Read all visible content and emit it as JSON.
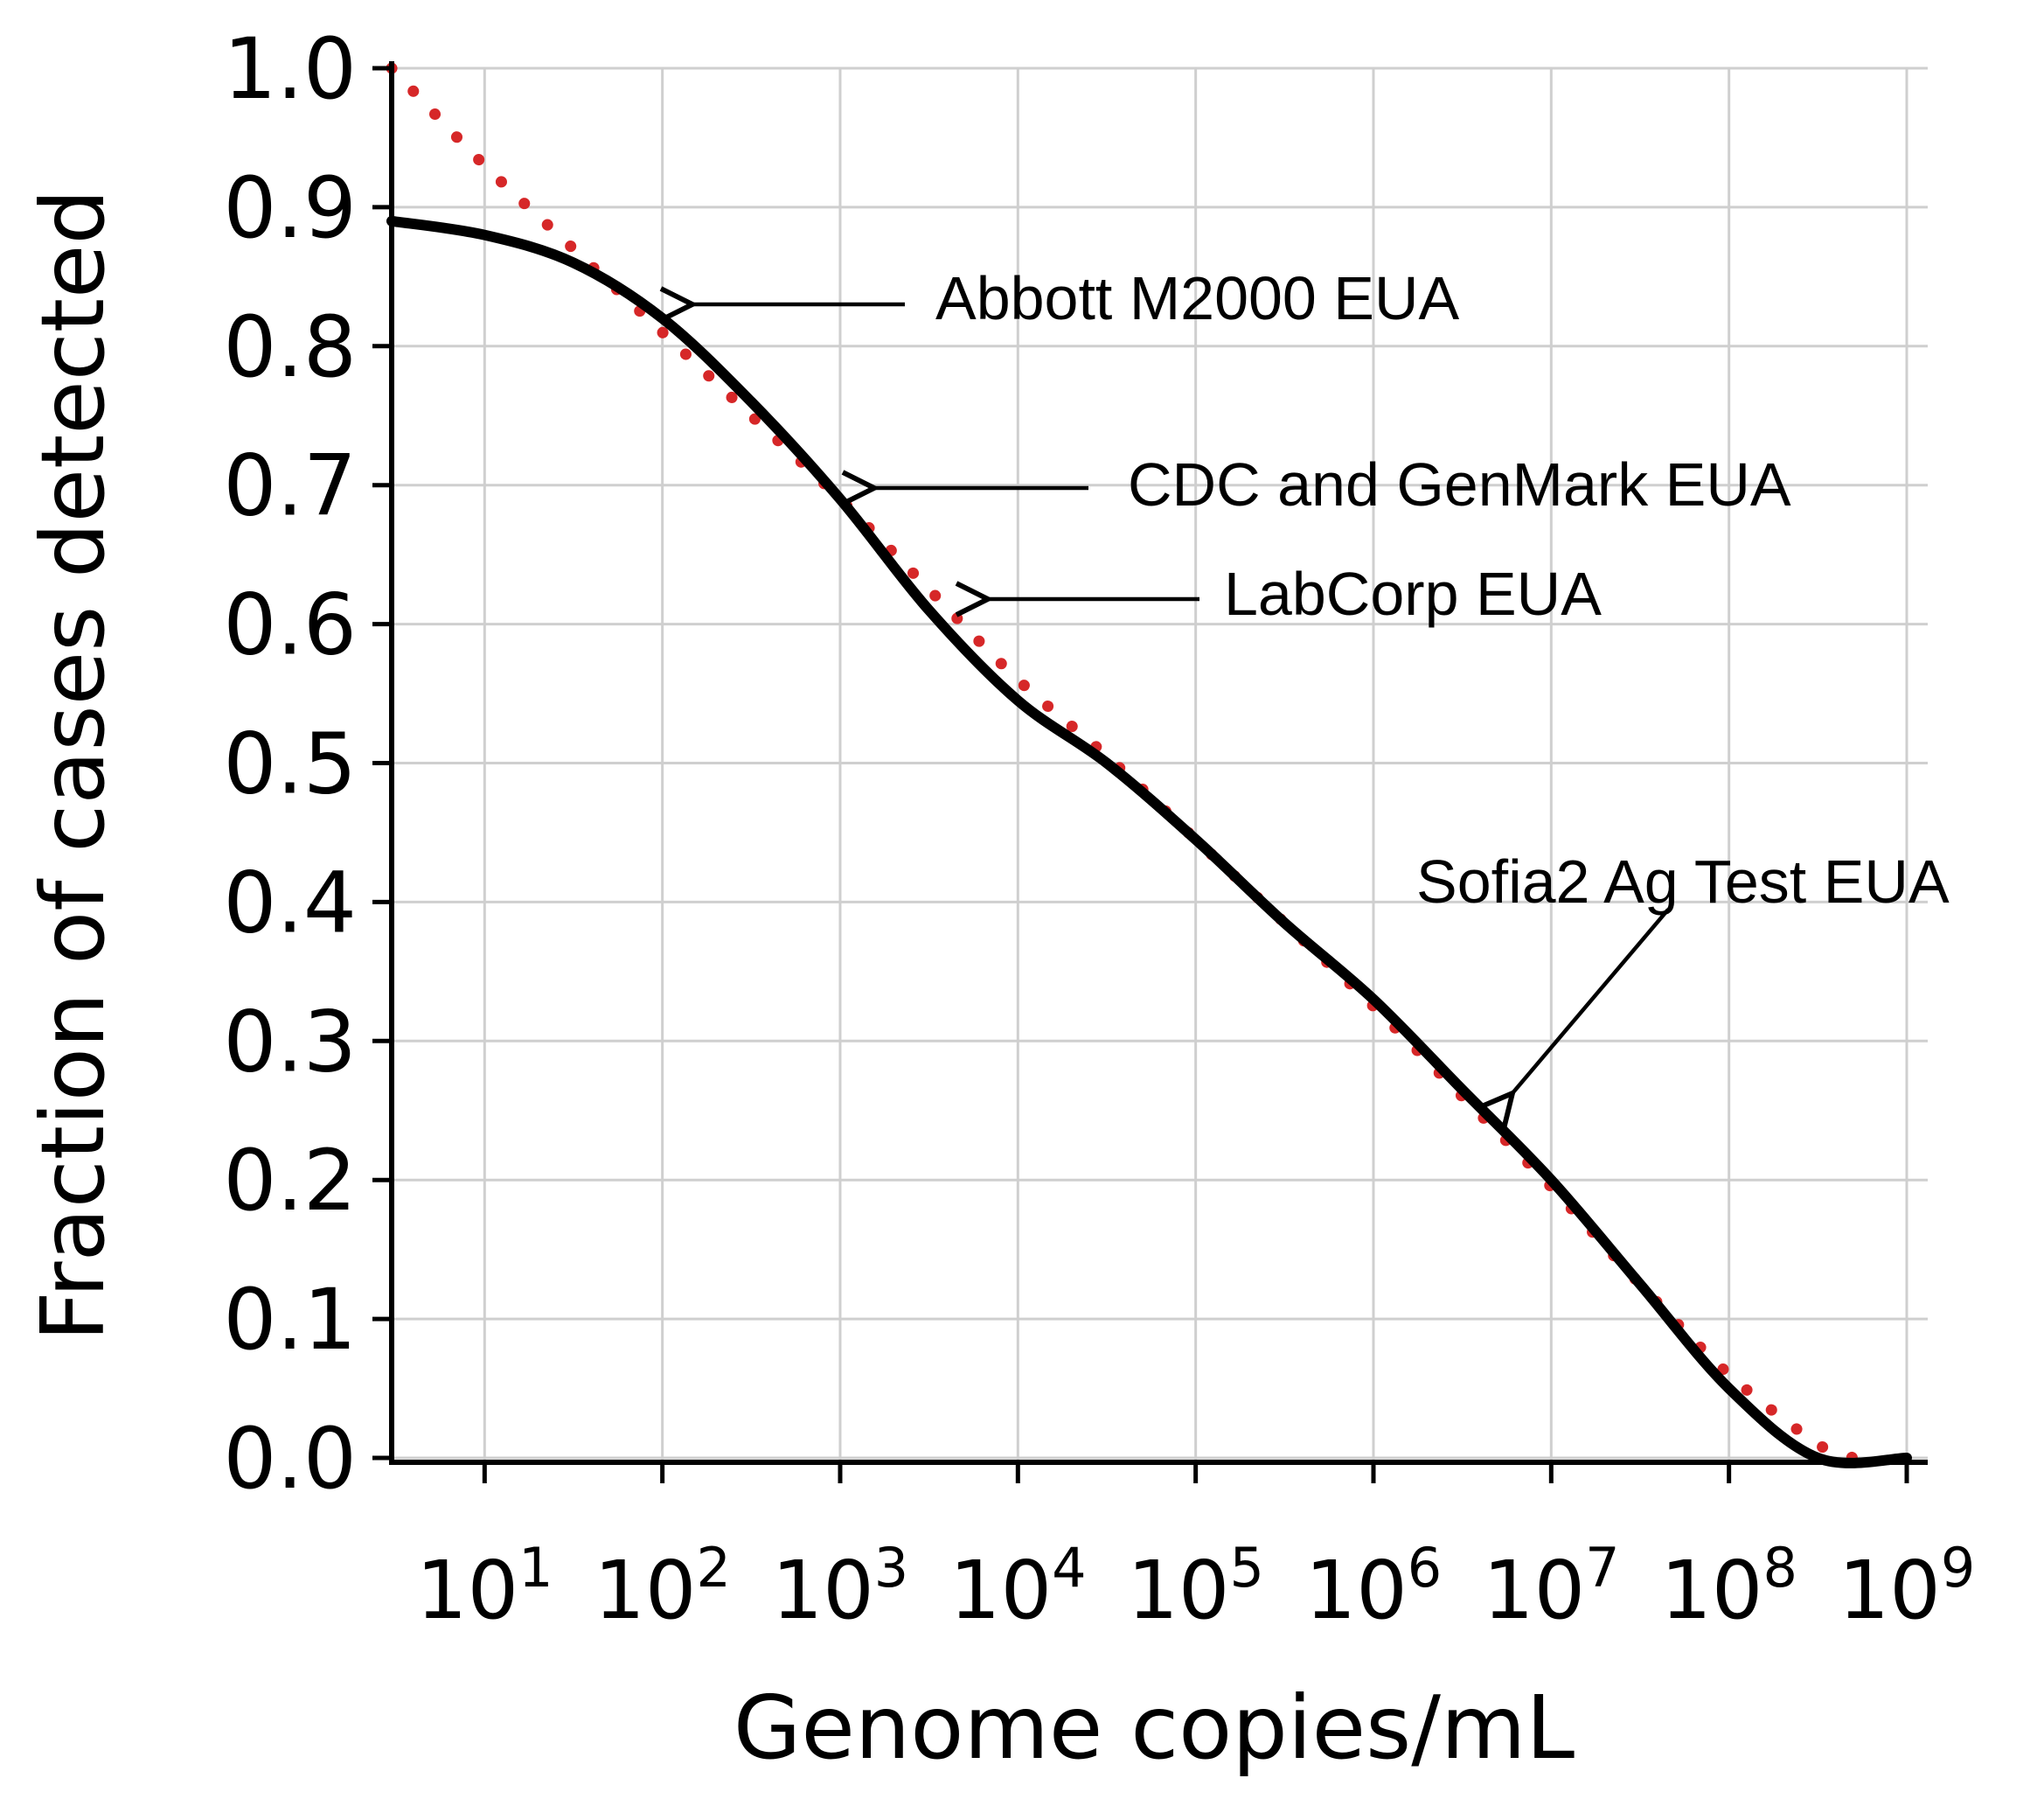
{
  "chart_data": {
    "type": "line",
    "xlabel": "Genome copies/mL",
    "ylabel": "Fraction of cases detected",
    "x_scale": "log",
    "xlim": [
      3,
      1000000000.0
    ],
    "ylim": [
      0,
      1.0
    ],
    "grid": true,
    "x_ticks": [
      {
        "value": 10,
        "base": "10",
        "exp": "1"
      },
      {
        "value": 100,
        "base": "10",
        "exp": "2"
      },
      {
        "value": 1000,
        "base": "10",
        "exp": "3"
      },
      {
        "value": 10000,
        "base": "10",
        "exp": "4"
      },
      {
        "value": 100000,
        "base": "10",
        "exp": "5"
      },
      {
        "value": 1000000,
        "base": "10",
        "exp": "6"
      },
      {
        "value": 10000000,
        "base": "10",
        "exp": "7"
      },
      {
        "value": 100000000,
        "base": "10",
        "exp": "8"
      },
      {
        "value": 1000000000,
        "base": "10",
        "exp": "9"
      }
    ],
    "y_ticks": [
      "0.0",
      "0.1",
      "0.2",
      "0.3",
      "0.4",
      "0.5",
      "0.6",
      "0.7",
      "0.8",
      "0.9",
      "1.0"
    ],
    "series": [
      {
        "style": "solid",
        "color": "#000000",
        "x": [
          3,
          10,
          31.6,
          100,
          316,
          1000,
          3162,
          10000,
          31623,
          100000,
          316228,
          1000000,
          3162278,
          10000000,
          31622777,
          100000000,
          316227766,
          1000000000
        ],
        "y": [
          0.89,
          0.88,
          0.86,
          0.82,
          0.76,
          0.69,
          0.61,
          0.545,
          0.5,
          0.445,
          0.385,
          0.33,
          0.265,
          0.2,
          0.125,
          0.05,
          0.0,
          0.0
        ]
      },
      {
        "style": "dotted",
        "color": "#d62728",
        "x": [
          3,
          10,
          31.6,
          100,
          316,
          1000,
          3162,
          10000,
          31623,
          100000,
          316228,
          1000000,
          3162278,
          10000000,
          31622777,
          100000000,
          316227766,
          501187234
        ],
        "y": [
          1.0,
          0.93,
          0.87,
          0.81,
          0.75,
          0.69,
          0.625,
          0.56,
          0.505,
          0.445,
          0.385,
          0.325,
          0.26,
          0.195,
          0.125,
          0.06,
          0.01,
          0.0
        ]
      }
    ],
    "annotations": [
      {
        "text": "Abbott M2000 EUA",
        "x": 120,
        "y": 0.83
      },
      {
        "text": "CDC and GenMark EUA",
        "x": 1300,
        "y": 0.695
      },
      {
        "text": "LabCorp EUA",
        "x": 5600,
        "y": 0.615
      },
      {
        "text": "Sofia2 Ag Test EUA",
        "x": 5600000,
        "y": 0.26
      }
    ]
  }
}
